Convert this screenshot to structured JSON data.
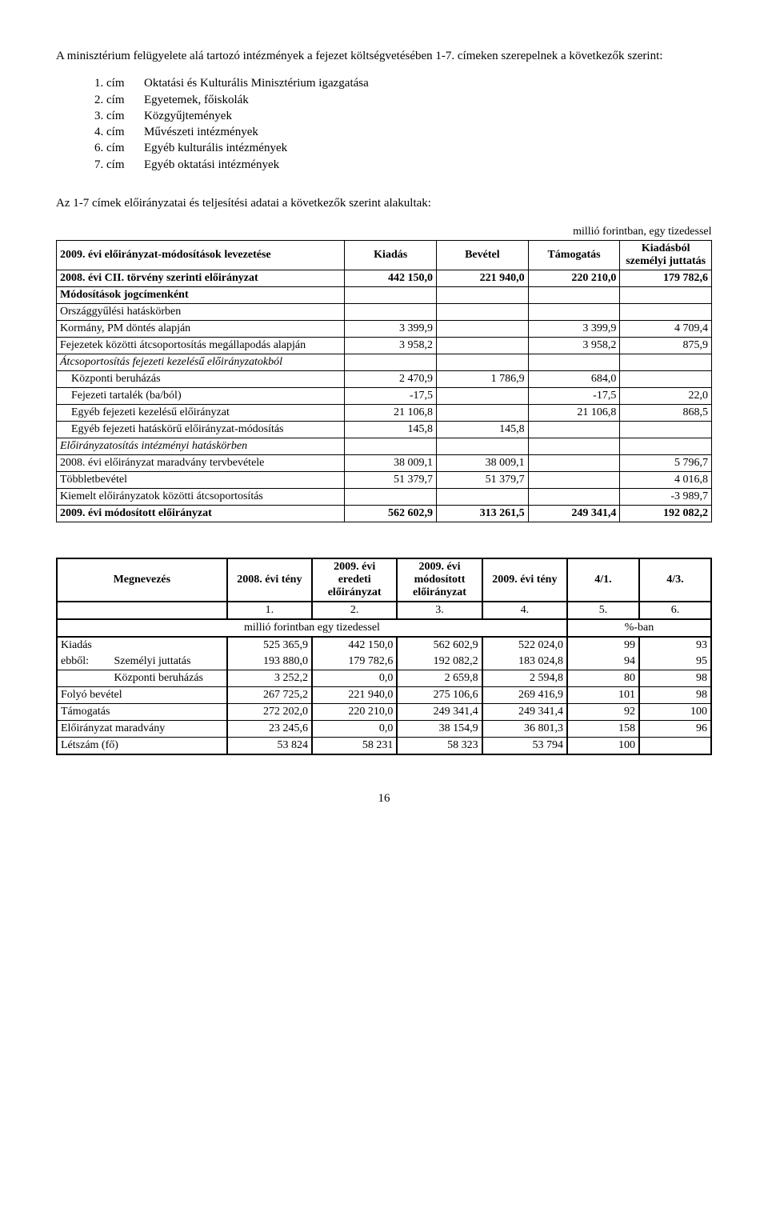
{
  "intro": "A minisztérium felügyelete alá tartozó intézmények a fejezet költségvetésében 1-7. címeken szerepelnek a következők szerint:",
  "cim_list": [
    {
      "num": "1. cím",
      "label": "Oktatási és Kulturális Minisztérium igazgatása"
    },
    {
      "num": "2. cím",
      "label": "Egyetemek, főiskolák"
    },
    {
      "num": "3. cím",
      "label": "Közgyűjtemények"
    },
    {
      "num": "4. cím",
      "label": "Művészeti intézmények"
    },
    {
      "num": "6. cím",
      "label": "Egyéb kulturális intézmények"
    },
    {
      "num": "7. cím",
      "label": "Egyéb oktatási intézmények"
    }
  ],
  "section_title": "Az 1-7 címek előirányzatai és teljesítési adatai a következők szerint alakultak:",
  "table1": {
    "caption": "millió forintban, egy tizedessel",
    "headers": {
      "c0": "2009. évi előirányzat-módosítások levezetése",
      "c1": "Kiadás",
      "c2": "Bevétel",
      "c3": "Támogatás",
      "c4": "Kiadásból személyi juttatás"
    },
    "rows": [
      {
        "label": "2008. évi CII. törvény szerinti előirányzat",
        "v": [
          "442 150,0",
          "221 940,0",
          "220 210,0",
          "179 782,6"
        ],
        "bold": true
      },
      {
        "label": "Módosítások jogcímenként",
        "v": [
          "",
          "",
          "",
          ""
        ],
        "bold": true
      },
      {
        "label": "Országgyűlési hatáskörben",
        "v": [
          "",
          "",
          "",
          ""
        ]
      },
      {
        "label": "Kormány, PM döntés alapján",
        "v": [
          "3 399,9",
          "",
          "3 399,9",
          "4 709,4"
        ]
      },
      {
        "label": "Fejezetek közötti átcsoportosítás megállapodás alapján",
        "v": [
          "3 958,2",
          "",
          "3 958,2",
          "875,9"
        ]
      },
      {
        "label": "Átcsoportosítás fejezeti kezelésű előirányzatokból",
        "v": [
          "",
          "",
          "",
          ""
        ],
        "italic": true
      },
      {
        "label": "Központi beruházás",
        "v": [
          "2 470,9",
          "1 786,9",
          "684,0",
          ""
        ],
        "indent": true
      },
      {
        "label": "Fejezeti tartalék (ba/ból)",
        "v": [
          "-17,5",
          "",
          "-17,5",
          "22,0"
        ],
        "indent": true
      },
      {
        "label": "Egyéb fejezeti kezelésű előirányzat",
        "v": [
          "21 106,8",
          "",
          "21 106,8",
          "868,5"
        ],
        "indent": true
      },
      {
        "label": "Egyéb fejezeti hatáskörű előirányzat-módosítás",
        "v": [
          "145,8",
          "145,8",
          "",
          ""
        ],
        "indent": true
      },
      {
        "label": "Előirányzatosítás intézményi hatáskörben",
        "v": [
          "",
          "",
          "",
          ""
        ],
        "italic": true
      },
      {
        "label": "2008. évi előirányzat maradvány tervbevétele",
        "v": [
          "38 009,1",
          "38 009,1",
          "",
          "5 796,7"
        ]
      },
      {
        "label": "Többletbevétel",
        "v": [
          "51 379,7",
          "51 379,7",
          "",
          "4 016,8"
        ]
      },
      {
        "label": "Kiemelt előirányzatok közötti átcsoportosítás",
        "v": [
          "",
          "",
          "",
          "-3 989,7"
        ]
      },
      {
        "label": "2009. évi módosított előirányzat",
        "v": [
          "562 602,9",
          "313 261,5",
          "249 341,4",
          "192 082,2"
        ],
        "bold": true
      }
    ],
    "col_widths": [
      "44%",
      "14%",
      "14%",
      "14%",
      "14%"
    ]
  },
  "table2": {
    "headers": {
      "c0": "Megnevezés",
      "c1": "2008. évi tény",
      "c2": "2009. évi eredeti előirányzat",
      "c3": "2009. évi módosított előirányzat",
      "c4": "2009. évi tény",
      "c5": "4/1.",
      "c6": "4/3."
    },
    "num_header": [
      "1.",
      "2.",
      "3.",
      "4.",
      "5.",
      "6."
    ],
    "unit_left": "millió forintban egy tizedessel",
    "unit_right": "%-ban",
    "rows": [
      {
        "label": "Kiadás",
        "sub": "",
        "v": [
          "525 365,9",
          "442 150,0",
          "562 602,9",
          "522 024,0",
          "99",
          "93"
        ]
      },
      {
        "label": "ebből:",
        "sub": "Személyi juttatás",
        "v": [
          "193 880,0",
          "179 782,6",
          "192 082,2",
          "183 024,8",
          "94",
          "95"
        ]
      },
      {
        "label": "",
        "sub": "Központi beruházás",
        "v": [
          "3 252,2",
          "0,0",
          "2 659,8",
          "2 594,8",
          "80",
          "98"
        ],
        "sep": true
      },
      {
        "label": "Folyó bevétel",
        "sub": "",
        "v": [
          "267 725,2",
          "221 940,0",
          "275 106,6",
          "269 416,9",
          "101",
          "98"
        ],
        "sep": true
      },
      {
        "label": "Támogatás",
        "sub": "",
        "v": [
          "272 202,0",
          "220 210,0",
          "249 341,4",
          "249 341,4",
          "92",
          "100"
        ],
        "sep": true
      },
      {
        "label": "Előirányzat maradvány",
        "sub": "",
        "v": [
          "23 245,6",
          "0,0",
          "38 154,9",
          "36 801,3",
          "158",
          "96"
        ],
        "sep": true
      },
      {
        "label": "Létszám (fő)",
        "sub": "",
        "v": [
          "53 824",
          "58 231",
          "58 323",
          "53 794",
          "100",
          ""
        ],
        "sep": true,
        "last": true
      }
    ],
    "col_widths": [
      "8%",
      "18%",
      "13%",
      "13%",
      "13%",
      "13%",
      "11%",
      "11%"
    ]
  },
  "page_number": "16"
}
